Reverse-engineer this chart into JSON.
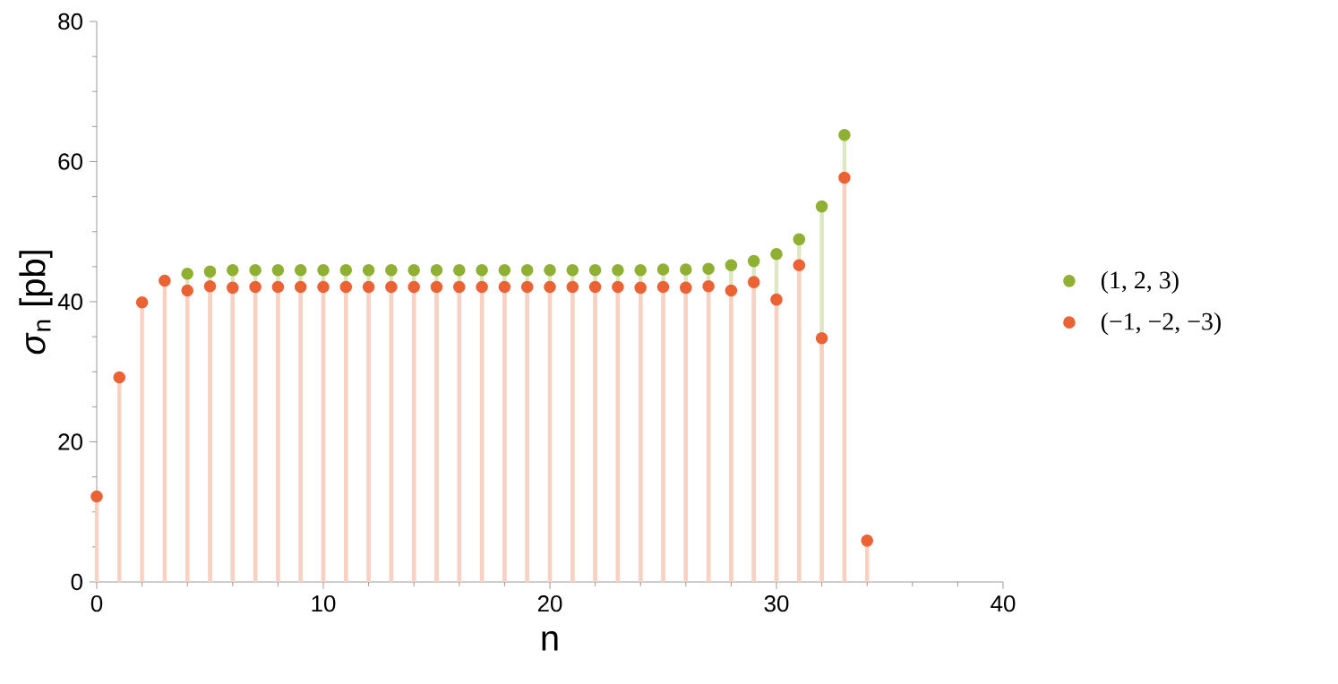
{
  "chart_data": {
    "type": "lollipop",
    "xlabel": "n",
    "ylabel": "*σ*$_{n}$ [pb]",
    "x": [
      0,
      1,
      2,
      3,
      4,
      5,
      6,
      7,
      8,
      9,
      10,
      11,
      12,
      13,
      14,
      15,
      16,
      17,
      18,
      19,
      20,
      21,
      22,
      23,
      24,
      25,
      26,
      27,
      28,
      29,
      30,
      31,
      32,
      33,
      34
    ],
    "series": [
      {
        "name": "(1, 2, 3)",
        "color": "#8fb032",
        "values": [
          null,
          null,
          null,
          null,
          44.0,
          44.3,
          44.5,
          44.5,
          44.5,
          44.5,
          44.5,
          44.5,
          44.5,
          44.5,
          44.5,
          44.5,
          44.5,
          44.5,
          44.5,
          44.5,
          44.5,
          44.5,
          44.5,
          44.5,
          44.5,
          44.6,
          44.6,
          44.7,
          45.2,
          45.8,
          46.8,
          48.9,
          53.6,
          63.8,
          null
        ]
      },
      {
        "name": "(−1, −2, −3)",
        "color": "#eb6235",
        "values": [
          12.2,
          29.2,
          39.9,
          43.0,
          41.6,
          42.2,
          42.0,
          42.1,
          42.1,
          42.1,
          42.1,
          42.1,
          42.1,
          42.1,
          42.1,
          42.1,
          42.1,
          42.1,
          42.1,
          42.1,
          42.1,
          42.1,
          42.1,
          42.1,
          42.0,
          42.1,
          42.0,
          42.2,
          41.6,
          42.8,
          40.3,
          45.2,
          34.8,
          57.7,
          5.9
        ]
      }
    ],
    "xlim": [
      0,
      40
    ],
    "xticks": [
      0,
      10,
      20,
      30,
      40
    ],
    "ylim": [
      0,
      80
    ],
    "yticks": [
      0,
      20,
      40,
      60,
      80
    ],
    "marker": "circle",
    "legend": "right"
  }
}
